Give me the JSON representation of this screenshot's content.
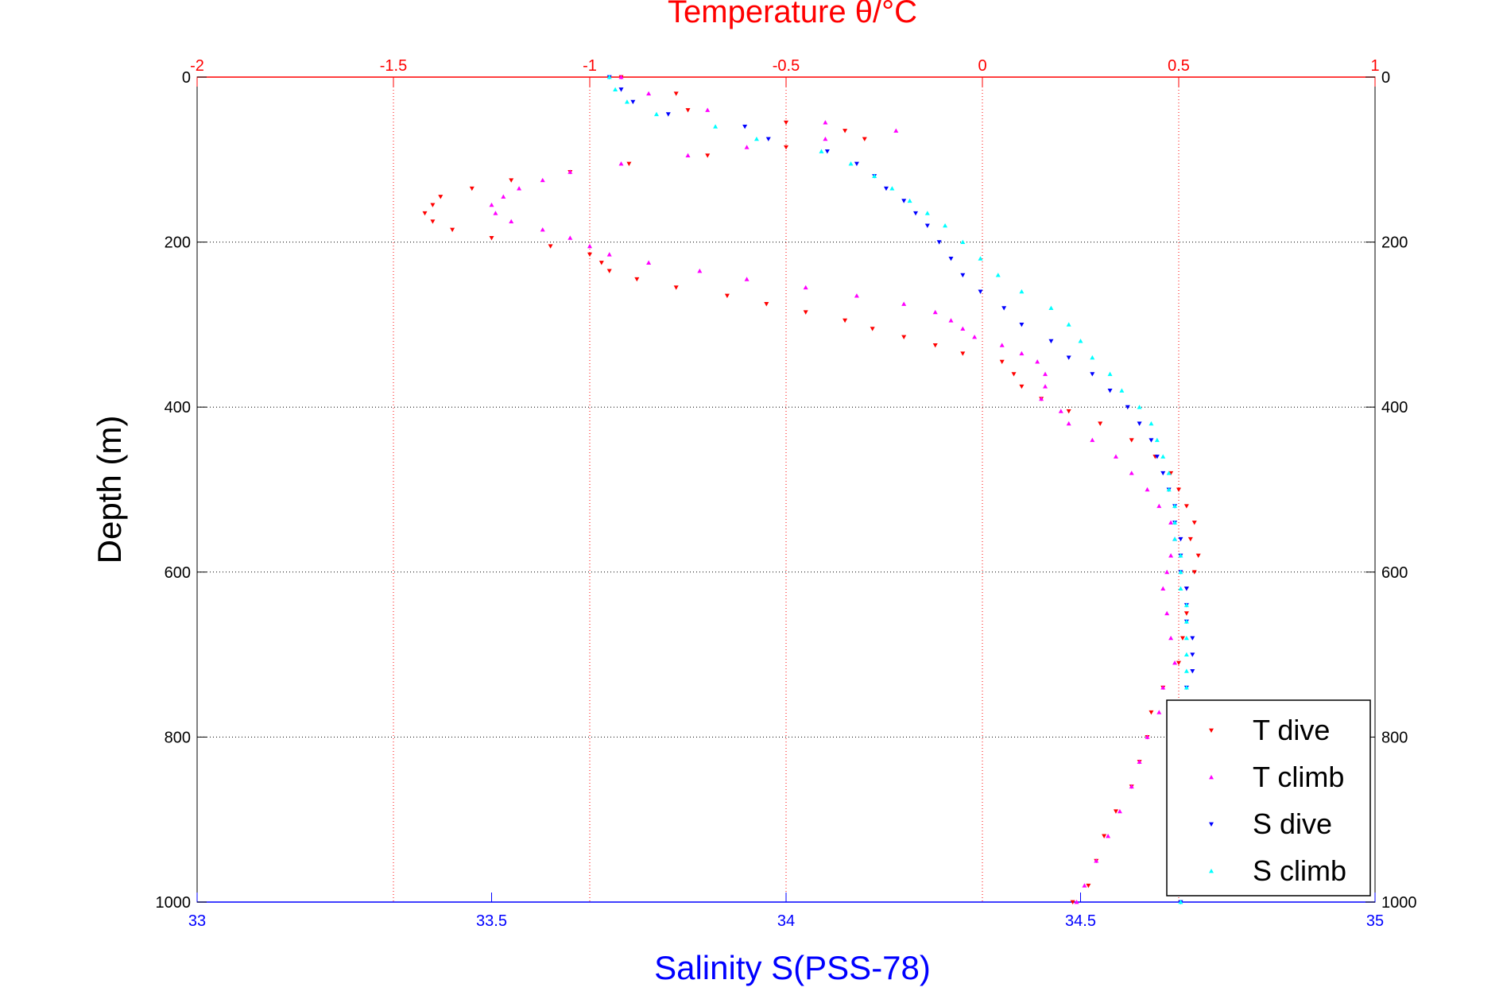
{
  "chart_data": {
    "type": "scatter",
    "title": "Temperature θ/°C",
    "xlabel_top": "Temperature θ/°C",
    "xlabel_bottom": "Salinity S(PSS-78)",
    "ylabel": "Depth (m)",
    "top_axis": {
      "label": "Temperature θ/°C",
      "range": [
        -2,
        1
      ],
      "ticks": [
        "-2",
        "-1.5",
        "-1",
        "-0.5",
        "0",
        "0.5",
        "1"
      ],
      "color": "#ff0000"
    },
    "bottom_axis": {
      "label": "Salinity S(PSS-78)",
      "range": [
        33,
        35
      ],
      "ticks": [
        "33",
        "33.5",
        "34",
        "34.5",
        "35"
      ],
      "color": "#0000ff"
    },
    "y_axis": {
      "label": "Depth (m)",
      "range": [
        0,
        1000
      ],
      "reversed": true,
      "ticks": [
        "0",
        "200",
        "400",
        "600",
        "800",
        "1000"
      ]
    },
    "grid": true,
    "legend_position": "bottom-right",
    "series": [
      {
        "name": "T dive",
        "axis": "top",
        "color": "#ff0000",
        "marker": "triangle-down",
        "depth": [
          0,
          20,
          40,
          55,
          65,
          75,
          85,
          95,
          105,
          115,
          125,
          135,
          145,
          155,
          165,
          175,
          185,
          195,
          205,
          215,
          225,
          235,
          245,
          255,
          265,
          275,
          285,
          295,
          305,
          315,
          325,
          335,
          345,
          360,
          375,
          390,
          405,
          420,
          440,
          460,
          480,
          500,
          520,
          540,
          560,
          580,
          600,
          620,
          650,
          680,
          710,
          740,
          770,
          800,
          830,
          860,
          890,
          920,
          950,
          980,
          1000
        ],
        "values": [
          -0.92,
          -0.78,
          -0.75,
          -0.5,
          -0.35,
          -0.3,
          -0.5,
          -0.7,
          -0.9,
          -1.05,
          -1.2,
          -1.3,
          -1.38,
          -1.4,
          -1.42,
          -1.4,
          -1.35,
          -1.25,
          -1.1,
          -1.0,
          -0.97,
          -0.95,
          -0.88,
          -0.78,
          -0.65,
          -0.55,
          -0.45,
          -0.35,
          -0.28,
          -0.2,
          -0.12,
          -0.05,
          0.05,
          0.08,
          0.1,
          0.15,
          0.22,
          0.3,
          0.38,
          0.44,
          0.48,
          0.5,
          0.52,
          0.54,
          0.53,
          0.55,
          0.54,
          0.52,
          0.52,
          0.51,
          0.5,
          0.46,
          0.43,
          0.42,
          0.4,
          0.38,
          0.34,
          0.31,
          0.29,
          0.27,
          0.23
        ]
      },
      {
        "name": "T climb",
        "axis": "top",
        "color": "#ff00ff",
        "marker": "triangle-up",
        "depth": [
          0,
          20,
          40,
          55,
          65,
          75,
          85,
          95,
          105,
          115,
          125,
          135,
          145,
          155,
          165,
          175,
          185,
          195,
          205,
          215,
          225,
          235,
          245,
          255,
          265,
          275,
          285,
          295,
          305,
          315,
          325,
          335,
          345,
          360,
          375,
          390,
          405,
          420,
          440,
          460,
          480,
          500,
          520,
          540,
          560,
          580,
          600,
          620,
          650,
          680,
          710,
          740,
          770,
          800,
          830,
          860,
          890,
          920,
          950,
          980,
          1000
        ],
        "values": [
          -0.92,
          -0.85,
          -0.7,
          -0.4,
          -0.22,
          -0.4,
          -0.6,
          -0.75,
          -0.92,
          -1.05,
          -1.12,
          -1.18,
          -1.22,
          -1.25,
          -1.24,
          -1.2,
          -1.12,
          -1.05,
          -1.0,
          -0.95,
          -0.85,
          -0.72,
          -0.6,
          -0.45,
          -0.32,
          -0.2,
          -0.12,
          -0.08,
          -0.05,
          -0.02,
          0.05,
          0.1,
          0.14,
          0.16,
          0.16,
          0.15,
          0.2,
          0.22,
          0.28,
          0.34,
          0.38,
          0.42,
          0.45,
          0.48,
          0.49,
          0.48,
          0.47,
          0.46,
          0.47,
          0.48,
          0.49,
          0.46,
          0.45,
          0.42,
          0.4,
          0.38,
          0.35,
          0.32,
          0.29,
          0.26,
          0.24
        ]
      },
      {
        "name": "S dive",
        "axis": "bottom",
        "color": "#0000ff",
        "marker": "triangle-down",
        "depth": [
          0,
          15,
          30,
          45,
          60,
          75,
          90,
          105,
          120,
          135,
          150,
          165,
          180,
          200,
          220,
          240,
          260,
          280,
          300,
          320,
          340,
          360,
          380,
          400,
          420,
          440,
          460,
          480,
          500,
          520,
          540,
          560,
          580,
          600,
          620,
          640,
          660,
          680,
          700,
          720,
          740,
          760,
          780,
          800,
          850,
          900,
          950,
          1000
        ],
        "values": [
          33.7,
          33.72,
          33.74,
          33.8,
          33.93,
          33.97,
          34.07,
          34.12,
          34.15,
          34.17,
          34.2,
          34.22,
          34.24,
          34.26,
          34.28,
          34.3,
          34.33,
          34.37,
          34.4,
          34.45,
          34.48,
          34.52,
          34.55,
          34.58,
          34.6,
          34.62,
          34.63,
          34.64,
          34.65,
          34.66,
          34.66,
          34.67,
          34.67,
          34.67,
          34.68,
          34.68,
          34.68,
          34.69,
          34.69,
          34.69,
          34.68,
          34.68,
          34.68,
          34.68,
          34.68,
          34.68,
          34.67,
          34.67
        ]
      },
      {
        "name": "S climb",
        "axis": "bottom",
        "color": "#00ffff",
        "marker": "triangle-up",
        "depth": [
          0,
          15,
          30,
          45,
          60,
          75,
          90,
          105,
          120,
          135,
          150,
          165,
          180,
          200,
          220,
          240,
          260,
          280,
          300,
          320,
          340,
          360,
          380,
          400,
          420,
          440,
          460,
          480,
          500,
          520,
          540,
          560,
          580,
          600,
          620,
          640,
          660,
          680,
          700,
          720,
          740,
          760,
          780,
          800,
          850,
          900,
          950,
          1000
        ],
        "values": [
          33.7,
          33.71,
          33.73,
          33.78,
          33.88,
          33.95,
          34.06,
          34.11,
          34.15,
          34.18,
          34.21,
          34.24,
          34.27,
          34.3,
          34.33,
          34.36,
          34.4,
          34.45,
          34.48,
          34.5,
          34.52,
          34.55,
          34.57,
          34.6,
          34.62,
          34.63,
          34.64,
          34.65,
          34.65,
          34.66,
          34.66,
          34.66,
          34.67,
          34.67,
          34.67,
          34.68,
          34.68,
          34.68,
          34.68,
          34.68,
          34.68,
          34.68,
          34.68,
          34.68,
          34.68,
          34.68,
          34.67,
          34.67
        ]
      }
    ]
  }
}
